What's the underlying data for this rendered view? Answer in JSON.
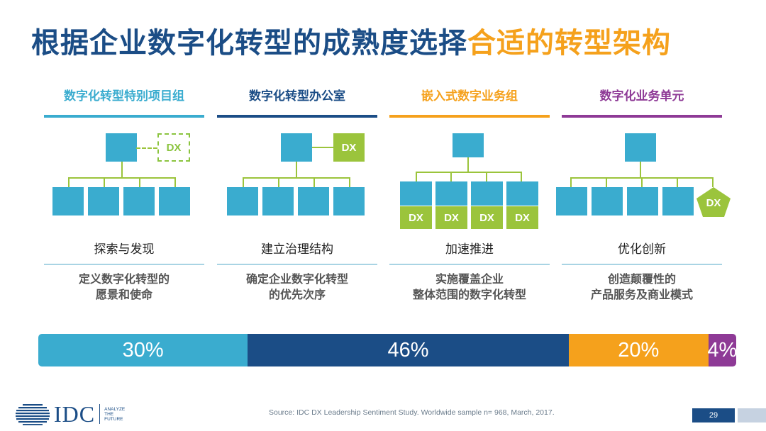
{
  "title": {
    "main": "根据企业数字化转型的成熟度选择",
    "accent": "合适的转型架构"
  },
  "colors": {
    "title_main": "#1b4d86",
    "title_accent": "#f5a11c",
    "box_blue": "#3aaccf",
    "dx_green": "#9bc43c"
  },
  "columns": [
    {
      "heading": "数字化转型特别项目组",
      "color": "#3aaccf",
      "dx_labels": [
        "DX"
      ],
      "sub_label": "探索与发现",
      "desc_line1": "定义数字化转型的",
      "desc_line2": "愿景和使命"
    },
    {
      "heading": "数字化转型办公室",
      "color": "#1b4d86",
      "dx_labels": [
        "DX"
      ],
      "sub_label": "建立治理结构",
      "desc_line1": "确定企业数字化转型",
      "desc_line2": "的优先次序"
    },
    {
      "heading": "嵌入式数字业务组",
      "color": "#f5a11c",
      "dx_labels": [
        "DX",
        "DX",
        "DX",
        "DX"
      ],
      "sub_label": "加速推进",
      "desc_line1": "实施覆盖企业",
      "desc_line2": "整体范围的数字化转型"
    },
    {
      "heading": "数字化业务单元",
      "color": "#8e3a96",
      "dx_labels": [
        "DX"
      ],
      "sub_label": "优化创新",
      "desc_line1": "创造颠覆性的",
      "desc_line2": "产品服务及商业模式"
    }
  ],
  "distribution": [
    {
      "label": "30%",
      "value": 30,
      "color": "#3aaccf"
    },
    {
      "label": "46%",
      "value": 46,
      "color": "#1b4d86"
    },
    {
      "label": "20%",
      "value": 20,
      "color": "#f5a11c"
    },
    {
      "label": "4%",
      "value": 4,
      "color": "#8e3a96"
    }
  ],
  "footer": {
    "logo_text": "IDC",
    "tagline_1": "ANALYZE",
    "tagline_2": "THE",
    "tagline_3": "FUTURE",
    "source": "Source: IDC DX Leadership Sentiment Study. Worldwide sample n= 968, March, 2017.",
    "page_number": "29"
  }
}
